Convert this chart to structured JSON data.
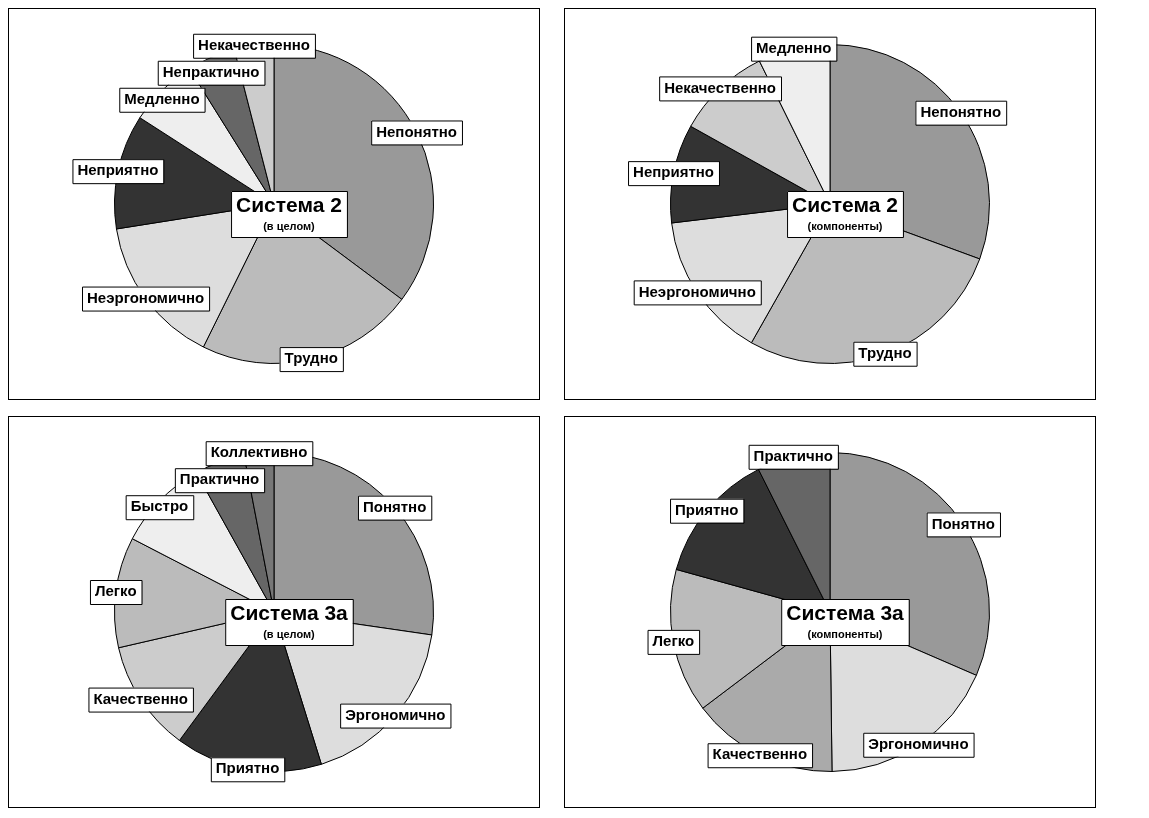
{
  "chart_data": [
    {
      "type": "pie",
      "title": "Система 2",
      "subtitle": "(в целом)",
      "legend": false,
      "categories": [
        "Непонятно",
        "Трудно",
        "Неэргономично",
        "Неприятно",
        "Медленно",
        "Непрактично",
        "Некачественно"
      ],
      "values": [
        35.2,
        22.1,
        15.2,
        11.6,
        7.0,
        4.9,
        4.0
      ],
      "colors": [
        "#999999",
        "#bbbbbb",
        "#dddddd",
        "#333333",
        "#eeeeee",
        "#666666",
        "#cccccc"
      ]
    },
    {
      "type": "pie",
      "title": "Система 2",
      "subtitle": "(компоненты)",
      "legend": false,
      "categories": [
        "Непонятно",
        "Трудно",
        "Неэргономично",
        "Неприятно",
        "Некачественно",
        "Медленно"
      ],
      "values": [
        30.6,
        27.6,
        14.9,
        10.0,
        9.6,
        7.3
      ],
      "colors": [
        "#999999",
        "#bbbbbb",
        "#dddddd",
        "#333333",
        "#cccccc",
        "#eeeeee"
      ]
    },
    {
      "type": "pie",
      "title": "Система 3а",
      "subtitle": "(в целом)",
      "legend": false,
      "categories": [
        "Понятно",
        "Эргономично",
        "Приятно",
        "Качественно",
        "Легко",
        "Быстро",
        "Практично",
        "Коллективно"
      ],
      "values": [
        27.3,
        17.9,
        14.9,
        11.3,
        11.2,
        9.3,
        5.1,
        3.0
      ],
      "colors": [
        "#999999",
        "#dddddd",
        "#333333",
        "#cccccc",
        "#bbbbbb",
        "#eeeeee",
        "#666666",
        "#777777"
      ]
    },
    {
      "type": "pie",
      "title": "Система 3а",
      "subtitle": "(компоненты)",
      "legend": false,
      "categories": [
        "Понятно",
        "Эргономично",
        "Качественно",
        "Легко",
        "Приятно",
        "Практично"
      ],
      "values": [
        31.5,
        18.3,
        14.9,
        14.6,
        13.3,
        7.4
      ],
      "colors": [
        "#999999",
        "#dddddd",
        "#aaaaaa",
        "#bbbbbb",
        "#333333",
        "#666666"
      ]
    }
  ]
}
